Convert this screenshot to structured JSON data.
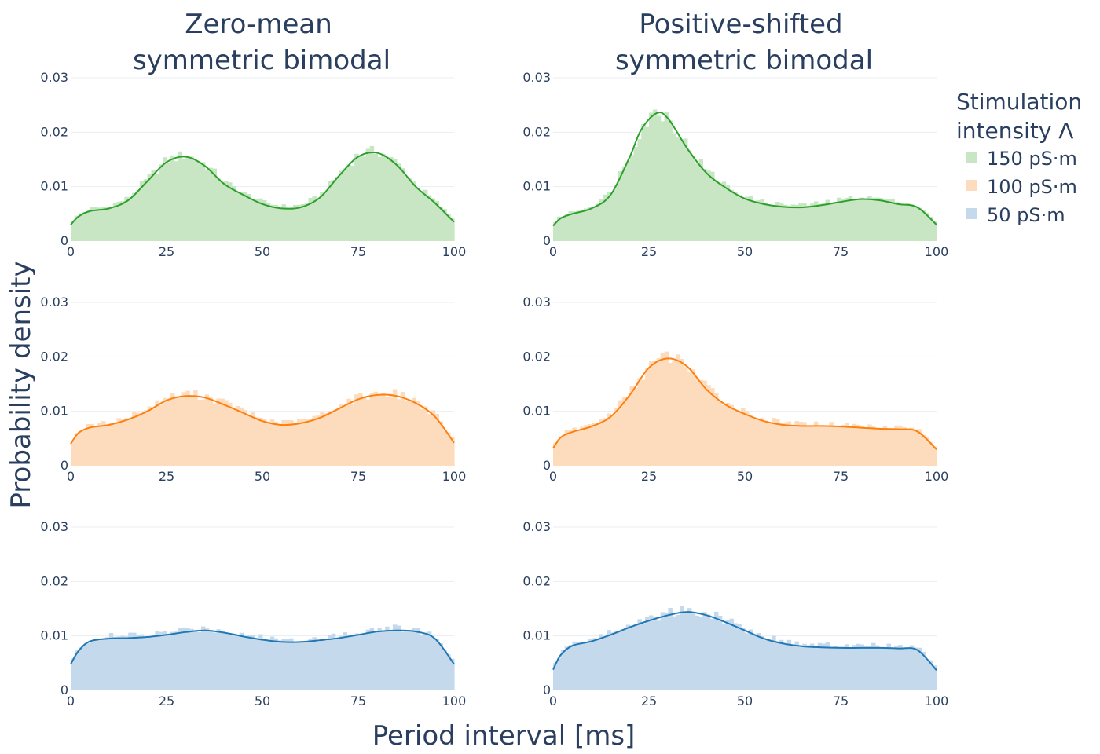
{
  "chart_data": {
    "type": "histogram",
    "column_titles": [
      [
        "Zero-mean",
        "symmetric bimodal"
      ],
      [
        "Positive-shifted",
        "symmetric bimodal"
      ]
    ],
    "xlabel": "Period interval [ms]",
    "ylabel": "Probability density",
    "xlim": [
      0,
      100
    ],
    "ylim": [
      0,
      0.03
    ],
    "x_ticks": [
      0,
      25,
      50,
      75,
      100
    ],
    "y_ticks": [
      0,
      0.01,
      0.02,
      0.03
    ],
    "y_tick_labels": [
      "0",
      "0.01",
      "0.02",
      "0.03"
    ],
    "legend": {
      "title": [
        "Stimulation",
        "intensity Λ"
      ],
      "placement": "right",
      "items": [
        {
          "label": "150 pS·m",
          "color": "#2ca02c"
        },
        {
          "label": "100 pS·m",
          "color": "#ff7f0e"
        },
        {
          "label": "50 pS·m",
          "color": "#1f77b4"
        }
      ]
    },
    "colors": {
      "green": {
        "line": "#2ca02c",
        "fill": "#c8e6c3"
      },
      "orange": {
        "line": "#ff7f0e",
        "fill": "#fddcbd"
      },
      "blue": {
        "line": "#1f77b4",
        "fill": "#c5d9ec"
      }
    },
    "panels": [
      {
        "row": 0,
        "col": 0,
        "series": "150 pS·m",
        "color": "green",
        "kde_x": [
          0,
          2,
          5,
          10,
          15,
          20,
          25,
          30,
          35,
          40,
          45,
          50,
          55,
          60,
          65,
          70,
          75,
          80,
          85,
          90,
          95,
          100
        ],
        "kde_y": [
          0.003,
          0.0045,
          0.0055,
          0.006,
          0.0075,
          0.011,
          0.0145,
          0.0155,
          0.0138,
          0.0105,
          0.0085,
          0.0068,
          0.006,
          0.0062,
          0.008,
          0.012,
          0.0155,
          0.0162,
          0.014,
          0.01,
          0.007,
          0.0035
        ]
      },
      {
        "row": 0,
        "col": 1,
        "series": "150 pS·m",
        "color": "green",
        "kde_x": [
          0,
          2,
          5,
          10,
          15,
          20,
          23,
          27,
          30,
          35,
          40,
          45,
          50,
          55,
          60,
          65,
          70,
          75,
          80,
          85,
          90,
          95,
          100
        ],
        "kde_y": [
          0.0028,
          0.0042,
          0.005,
          0.006,
          0.0085,
          0.0155,
          0.0205,
          0.0235,
          0.0225,
          0.017,
          0.0125,
          0.0098,
          0.0078,
          0.0068,
          0.0063,
          0.0062,
          0.0066,
          0.0072,
          0.0077,
          0.0075,
          0.0068,
          0.0062,
          0.003
        ]
      },
      {
        "row": 1,
        "col": 0,
        "series": "100 pS·m",
        "color": "orange",
        "kde_x": [
          0,
          2,
          5,
          10,
          15,
          20,
          25,
          30,
          35,
          40,
          45,
          50,
          55,
          60,
          65,
          70,
          75,
          80,
          85,
          90,
          95,
          100
        ],
        "kde_y": [
          0.004,
          0.006,
          0.007,
          0.0075,
          0.0085,
          0.01,
          0.012,
          0.0128,
          0.0125,
          0.0112,
          0.0097,
          0.0082,
          0.0075,
          0.0078,
          0.0088,
          0.0105,
          0.0122,
          0.013,
          0.0128,
          0.0115,
          0.009,
          0.0042
        ]
      },
      {
        "row": 1,
        "col": 1,
        "series": "100 pS·m",
        "color": "orange",
        "kde_x": [
          0,
          2,
          5,
          10,
          15,
          20,
          25,
          30,
          35,
          40,
          45,
          50,
          55,
          60,
          65,
          70,
          75,
          80,
          85,
          90,
          95,
          100
        ],
        "kde_y": [
          0.0032,
          0.0052,
          0.0062,
          0.0072,
          0.009,
          0.013,
          0.018,
          0.0197,
          0.0182,
          0.014,
          0.0112,
          0.0095,
          0.0082,
          0.0075,
          0.0073,
          0.0073,
          0.0072,
          0.007,
          0.0068,
          0.0067,
          0.0063,
          0.003
        ]
      },
      {
        "row": 2,
        "col": 0,
        "series": "50 pS·m",
        "color": "blue",
        "kde_x": [
          0,
          2,
          5,
          10,
          15,
          20,
          25,
          30,
          35,
          40,
          45,
          50,
          55,
          60,
          65,
          70,
          75,
          80,
          85,
          90,
          95,
          100
        ],
        "kde_y": [
          0.0048,
          0.0072,
          0.009,
          0.0095,
          0.0096,
          0.0098,
          0.0102,
          0.0107,
          0.011,
          0.0106,
          0.0099,
          0.0093,
          0.0089,
          0.0089,
          0.0092,
          0.0096,
          0.0102,
          0.0108,
          0.011,
          0.0108,
          0.0095,
          0.0048
        ]
      },
      {
        "row": 2,
        "col": 1,
        "series": "50 pS·m",
        "color": "blue",
        "kde_x": [
          0,
          2,
          5,
          10,
          15,
          20,
          25,
          30,
          35,
          40,
          45,
          50,
          55,
          60,
          65,
          70,
          75,
          80,
          85,
          90,
          95,
          100
        ],
        "kde_y": [
          0.0038,
          0.0065,
          0.0082,
          0.009,
          0.0102,
          0.0116,
          0.0128,
          0.0138,
          0.0144,
          0.0138,
          0.0125,
          0.011,
          0.0095,
          0.0086,
          0.0081,
          0.0079,
          0.0078,
          0.0078,
          0.0078,
          0.0077,
          0.0074,
          0.0037
        ]
      }
    ]
  }
}
